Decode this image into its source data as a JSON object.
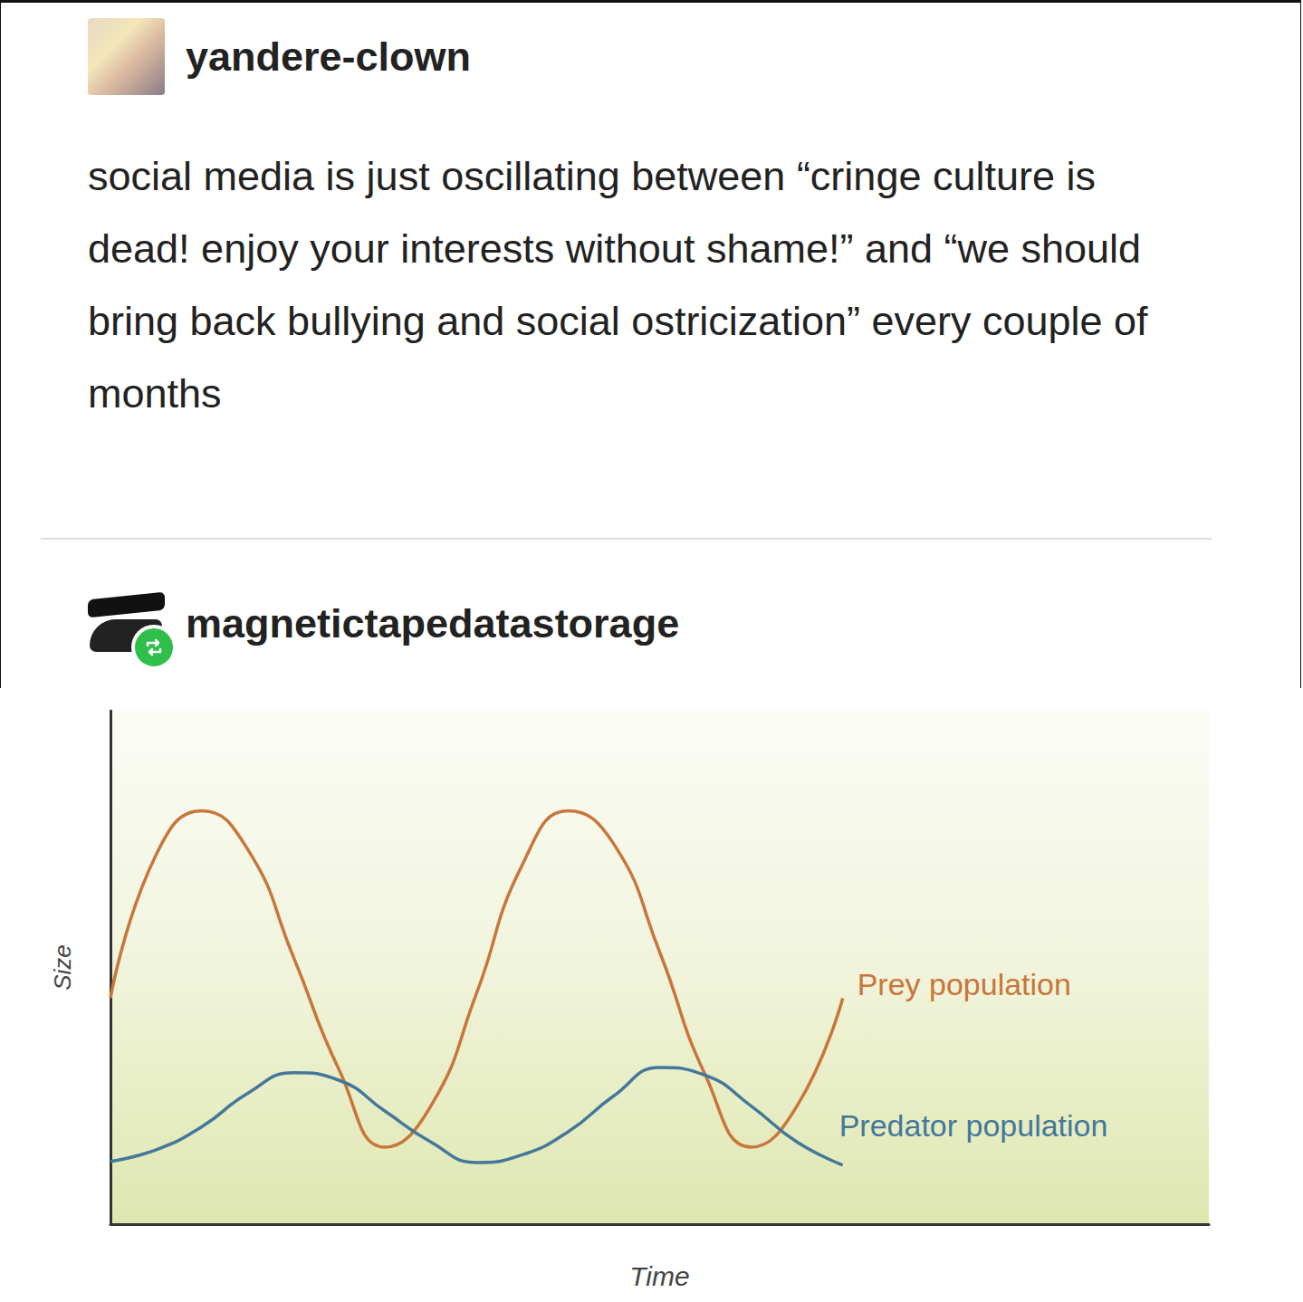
{
  "posts": [
    {
      "username": "yandere-clown",
      "text": "social media is just oscillating between “cringe culture is dead! enjoy your interests without shame!” and “we should bring back bullying and social ostricization” every couple of months"
    },
    {
      "username": "magnetictapedatastorage"
    }
  ],
  "chart_data": {
    "type": "line",
    "x_label": "Time",
    "y_label": "Size",
    "x": [
      0,
      0.5,
      1,
      1.5,
      2,
      2.5,
      3,
      3.5,
      4,
      4.5,
      5,
      5.5,
      6,
      6.5,
      7,
      7.5,
      8
    ],
    "xlim": [
      0,
      12
    ],
    "ylim": [
      0,
      10
    ],
    "grid": false,
    "tick_labels": false,
    "series": [
      {
        "name": "Prey population",
        "color": "#c9763a",
        "values": [
          4.4,
          7.2,
          8.05,
          7.3,
          5.2,
          3.0,
          1.5,
          2.3,
          4.5,
          7.0,
          8.05,
          7.4,
          5.3,
          2.9,
          1.5,
          2.3,
          4.4
        ]
      },
      {
        "name": "Predator population",
        "color": "#44789a",
        "values": [
          1.22,
          1.45,
          1.9,
          2.55,
          2.95,
          2.8,
          2.2,
          1.6,
          1.2,
          1.35,
          1.8,
          2.5,
          3.05,
          2.9,
          2.3,
          1.6,
          1.15
        ]
      }
    ]
  }
}
